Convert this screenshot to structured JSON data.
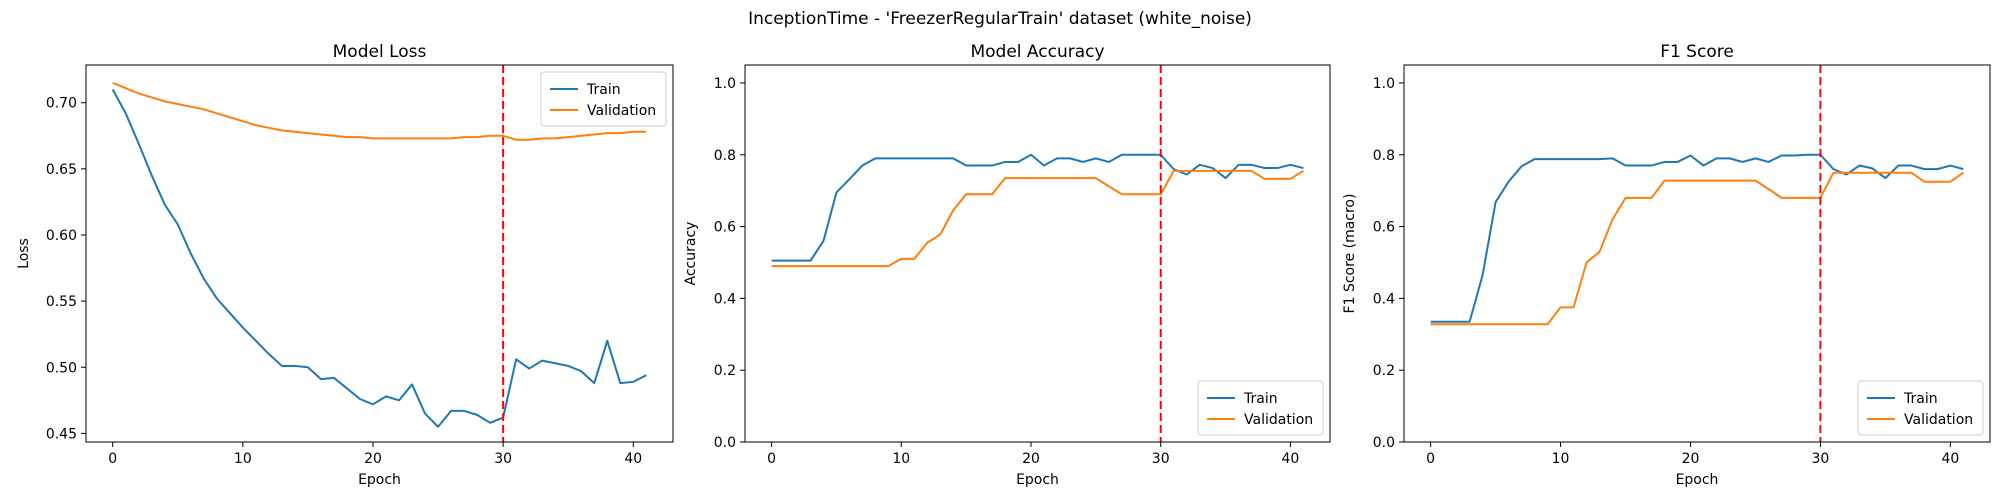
{
  "figure": {
    "suptitle": "InceptionTime - 'FreezerRegularTrain' dataset (white_noise)",
    "train_color": "#1f77b4",
    "val_color": "#ff7f0e",
    "marker_color": "#ff0000"
  },
  "chart_data": [
    {
      "type": "line",
      "title": "Model Loss",
      "xlabel": "Epoch",
      "ylabel": "Loss",
      "xlim": [
        -2.05,
        43.05
      ],
      "ylim": [
        0.4435,
        0.7285
      ],
      "xticks": [
        0,
        10,
        20,
        30,
        40
      ],
      "yticks": [
        0.45,
        0.5,
        0.55,
        0.6,
        0.65,
        0.7
      ],
      "ytick_labels": [
        "0.45",
        "0.50",
        "0.55",
        "0.60",
        "0.65",
        "0.70"
      ],
      "vline_x": 30,
      "legend": "upper right",
      "series": [
        {
          "name": "Train",
          "values": [
            0.71,
            0.692,
            0.669,
            0.645,
            0.623,
            0.608,
            0.586,
            0.567,
            0.552,
            0.541,
            0.53,
            0.52,
            0.51,
            0.501,
            0.501,
            0.5,
            0.491,
            0.492,
            0.484,
            0.476,
            0.472,
            0.478,
            0.475,
            0.487,
            0.465,
            0.455,
            0.467,
            0.467,
            0.464,
            0.458,
            0.462,
            0.506,
            0.499,
            0.505,
            0.503,
            0.501,
            0.497,
            0.488,
            0.52,
            0.488,
            0.489,
            0.494
          ]
        },
        {
          "name": "Validation",
          "values": [
            0.715,
            0.711,
            0.707,
            0.704,
            0.701,
            0.699,
            0.697,
            0.695,
            0.692,
            0.689,
            0.686,
            0.683,
            0.681,
            0.679,
            0.678,
            0.677,
            0.676,
            0.675,
            0.674,
            0.674,
            0.673,
            0.673,
            0.673,
            0.673,
            0.673,
            0.673,
            0.673,
            0.674,
            0.674,
            0.675,
            0.675,
            0.672,
            0.672,
            0.673,
            0.673,
            0.674,
            0.675,
            0.676,
            0.677,
            0.677,
            0.678,
            0.678
          ]
        }
      ]
    },
    {
      "type": "line",
      "title": "Model Accuracy",
      "xlabel": "Epoch",
      "ylabel": "Accuracy",
      "xlim": [
        -2.05,
        43.05
      ],
      "ylim": [
        0.0,
        1.05
      ],
      "xticks": [
        0,
        10,
        20,
        30,
        40
      ],
      "yticks": [
        0.0,
        0.2,
        0.4,
        0.6,
        0.8,
        1.0
      ],
      "ytick_labels": [
        "0.0",
        "0.2",
        "0.4",
        "0.6",
        "0.8",
        "1.0"
      ],
      "vline_x": 30,
      "legend": "lower right",
      "series": [
        {
          "name": "Train",
          "values": [
            0.505,
            0.505,
            0.505,
            0.505,
            0.56,
            0.695,
            0.732,
            0.77,
            0.79,
            0.79,
            0.79,
            0.79,
            0.79,
            0.79,
            0.79,
            0.77,
            0.77,
            0.77,
            0.78,
            0.78,
            0.8,
            0.77,
            0.79,
            0.79,
            0.78,
            0.79,
            0.78,
            0.8,
            0.8,
            0.8,
            0.8,
            0.76,
            0.745,
            0.772,
            0.763,
            0.735,
            0.772,
            0.772,
            0.763,
            0.763,
            0.772,
            0.763
          ]
        },
        {
          "name": "Validation",
          "values": [
            0.49,
            0.49,
            0.49,
            0.49,
            0.49,
            0.49,
            0.49,
            0.49,
            0.49,
            0.49,
            0.51,
            0.51,
            0.555,
            0.578,
            0.645,
            0.69,
            0.69,
            0.69,
            0.735,
            0.735,
            0.735,
            0.735,
            0.735,
            0.735,
            0.735,
            0.735,
            0.712,
            0.69,
            0.69,
            0.69,
            0.69,
            0.755,
            0.755,
            0.755,
            0.755,
            0.755,
            0.755,
            0.755,
            0.733,
            0.733,
            0.733,
            0.755
          ]
        }
      ]
    },
    {
      "type": "line",
      "title": "F1 Score",
      "xlabel": "Epoch",
      "ylabel": "F1 Score (macro)",
      "xlim": [
        -2.05,
        43.05
      ],
      "ylim": [
        0.0,
        1.05
      ],
      "xticks": [
        0,
        10,
        20,
        30,
        40
      ],
      "yticks": [
        0.0,
        0.2,
        0.4,
        0.6,
        0.8,
        1.0
      ],
      "ytick_labels": [
        "0.0",
        "0.2",
        "0.4",
        "0.6",
        "0.8",
        "1.0"
      ],
      "vline_x": 30,
      "legend": "lower right",
      "series": [
        {
          "name": "Train",
          "values": [
            0.335,
            0.335,
            0.335,
            0.335,
            0.465,
            0.668,
            0.725,
            0.768,
            0.788,
            0.788,
            0.788,
            0.788,
            0.788,
            0.788,
            0.79,
            0.77,
            0.77,
            0.77,
            0.78,
            0.78,
            0.798,
            0.77,
            0.79,
            0.79,
            0.78,
            0.79,
            0.78,
            0.798,
            0.798,
            0.8,
            0.8,
            0.76,
            0.745,
            0.77,
            0.762,
            0.735,
            0.77,
            0.77,
            0.76,
            0.76,
            0.77,
            0.76
          ]
        },
        {
          "name": "Validation",
          "values": [
            0.328,
            0.328,
            0.328,
            0.328,
            0.328,
            0.328,
            0.328,
            0.328,
            0.328,
            0.328,
            0.375,
            0.375,
            0.5,
            0.53,
            0.62,
            0.68,
            0.68,
            0.68,
            0.728,
            0.728,
            0.728,
            0.728,
            0.728,
            0.728,
            0.728,
            0.728,
            0.705,
            0.68,
            0.68,
            0.68,
            0.68,
            0.75,
            0.75,
            0.75,
            0.75,
            0.75,
            0.75,
            0.75,
            0.725,
            0.725,
            0.725,
            0.75
          ]
        }
      ]
    }
  ]
}
